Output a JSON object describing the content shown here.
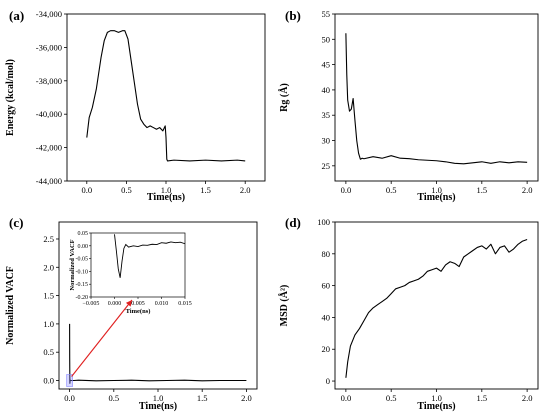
{
  "chart_data": [
    {
      "panel": "(a)",
      "type": "line",
      "xlabel": "Time(ns)",
      "ylabel": "Energy (kcal/mol)",
      "xlim": [
        -0.25,
        2.25
      ],
      "ylim": [
        -44000,
        -34000
      ],
      "xticks": [
        0.0,
        0.5,
        1.0,
        1.5,
        2.0
      ],
      "xtick_labels": [
        "0.0",
        "0.5",
        "1.0",
        "1.5",
        "2.0"
      ],
      "yticks": [
        -34000,
        -36000,
        -38000,
        -40000,
        -42000,
        -44000
      ],
      "ytick_labels": [
        "-34,000",
        "-36,000",
        "-38,000",
        "-40,000",
        "-42,000",
        "-44,000"
      ],
      "series": [
        {
          "color": "#000000",
          "x": [
            0.0,
            0.03,
            0.07,
            0.12,
            0.18,
            0.22,
            0.26,
            0.3,
            0.35,
            0.4,
            0.45,
            0.48,
            0.52,
            0.56,
            0.6,
            0.64,
            0.68,
            0.72,
            0.76,
            0.8,
            0.84,
            0.88,
            0.92,
            0.96,
            0.99,
            1.0,
            1.01,
            1.02,
            1.1,
            1.3,
            1.5,
            1.7,
            1.9,
            2.0
          ],
          "y": [
            -41400,
            -40200,
            -39600,
            -38500,
            -36600,
            -35600,
            -35100,
            -35000,
            -35000,
            -35100,
            -35000,
            -35000,
            -35500,
            -36800,
            -38100,
            -39400,
            -40300,
            -40600,
            -40800,
            -40700,
            -40800,
            -40900,
            -40800,
            -41000,
            -40700,
            -41400,
            -42700,
            -42800,
            -42750,
            -42800,
            -42750,
            -42800,
            -42750,
            -42800
          ]
        }
      ]
    },
    {
      "panel": "(b)",
      "type": "line",
      "xlabel": "Time(ns)",
      "ylabel": "Rg (Å)",
      "xlim": [
        -0.12,
        2.12
      ],
      "ylim": [
        22,
        55
      ],
      "xticks": [
        0.0,
        0.5,
        1.0,
        1.5,
        2.0
      ],
      "xtick_labels": [
        "0.0",
        "0.5",
        "1.0",
        "1.5",
        "2.0"
      ],
      "yticks": [
        25,
        30,
        35,
        40,
        45,
        50,
        55
      ],
      "ytick_labels": [
        "25",
        "30",
        "35",
        "40",
        "45",
        "50",
        "55"
      ],
      "series": [
        {
          "color": "#000000",
          "x": [
            0.0,
            0.005,
            0.01,
            0.02,
            0.04,
            0.06,
            0.08,
            0.1,
            0.12,
            0.14,
            0.16,
            0.18,
            0.2,
            0.3,
            0.4,
            0.5,
            0.6,
            0.7,
            0.8,
            0.9,
            1.0,
            1.1,
            1.2,
            1.3,
            1.4,
            1.5,
            1.6,
            1.7,
            1.8,
            1.9,
            2.0
          ],
          "y": [
            51.2,
            47,
            43,
            38,
            35.8,
            36.2,
            38.3,
            34,
            30,
            27.5,
            26.3,
            26.5,
            26.4,
            26.8,
            26.5,
            27.0,
            26.5,
            26.4,
            26.2,
            26.1,
            26.0,
            25.8,
            25.5,
            25.4,
            25.6,
            25.8,
            25.5,
            25.8,
            25.6,
            25.8,
            25.7
          ]
        }
      ]
    },
    {
      "panel": "(c)",
      "type": "line",
      "xlabel": "Time(ns)",
      "ylabel": "Normalized VACF",
      "xlim": [
        -0.12,
        2.12
      ],
      "ylim": [
        -0.15,
        2.8
      ],
      "xticks": [
        0.0,
        0.5,
        1.0,
        1.5,
        2.0
      ],
      "xtick_labels": [
        "0.0",
        "0.5",
        "1.0",
        "1.5",
        "2.0"
      ],
      "yticks": [
        0.0,
        0.5,
        1.0,
        1.5,
        2.0,
        2.5
      ],
      "ytick_labels": [
        "0.0",
        "0.5",
        "1.0",
        "1.5",
        "2.0",
        "2.5"
      ],
      "series": [
        {
          "color": "#000000",
          "x": [
            0.0,
            0.001,
            0.003,
            0.006,
            0.01,
            0.05,
            0.1,
            0.3,
            0.5,
            0.7,
            0.9,
            1.1,
            1.3,
            1.5,
            1.7,
            1.9,
            2.0
          ],
          "y": [
            1.0,
            0.4,
            -0.05,
            0.01,
            0.0,
            0.0,
            0.005,
            -0.005,
            0.0,
            0.005,
            -0.005,
            0.0,
            0.005,
            -0.005,
            0.0,
            0.0,
            0.0
          ]
        }
      ],
      "inset": {
        "ylabel": "Normalized VACF",
        "xlabel": "Time(ns)",
        "xlim": [
          -0.005,
          0.015
        ],
        "ylim": [
          -0.2,
          0.05
        ],
        "xticks": [
          -0.005,
          0.0,
          0.005,
          0.01,
          0.015
        ],
        "xtick_labels": [
          "−0.005",
          "0.000",
          "0.005",
          "0.010",
          "0.015"
        ],
        "yticks": [
          0.05,
          0.0,
          -0.05,
          -0.1,
          -0.15,
          -0.2
        ],
        "ytick_labels": [
          "0.05",
          "0.00",
          "-0.05",
          "-0.10",
          "-0.15",
          "-0.20"
        ],
        "series": [
          {
            "color": "#000000",
            "x": [
              0.0,
              0.0004,
              0.0008,
              0.0012,
              0.0016,
              0.002,
              0.0024,
              0.003,
              0.004,
              0.005,
              0.006,
              0.007,
              0.008,
              0.009,
              0.01,
              0.011,
              0.012,
              0.013,
              0.014,
              0.015
            ],
            "y": [
              0.045,
              -0.02,
              -0.09,
              -0.125,
              -0.06,
              -0.01,
              0.005,
              -0.005,
              0.0,
              -0.003,
              0.003,
              0.002,
              0.006,
              0.005,
              0.012,
              0.01,
              0.015,
              0.012,
              0.014,
              0.008
            ]
          }
        ],
        "arrow_color": "#e02020",
        "highlight_color": "#8888ff"
      }
    },
    {
      "panel": "(d)",
      "type": "line",
      "xlabel": "Time(ns)",
      "ylabel": "MSD (Å²)",
      "xlim": [
        -0.12,
        2.12
      ],
      "ylim": [
        -5,
        100
      ],
      "xticks": [
        0.0,
        0.5,
        1.0,
        1.5,
        2.0
      ],
      "xtick_labels": [
        "0.0",
        "0.5",
        "1.0",
        "1.5",
        "2.0"
      ],
      "yticks": [
        0,
        20,
        40,
        60,
        80,
        100
      ],
      "ytick_labels": [
        "0",
        "20",
        "40",
        "60",
        "80",
        "100"
      ],
      "series": [
        {
          "color": "#000000",
          "x": [
            0.0,
            0.02,
            0.05,
            0.1,
            0.15,
            0.2,
            0.25,
            0.3,
            0.35,
            0.4,
            0.45,
            0.5,
            0.55,
            0.6,
            0.65,
            0.7,
            0.75,
            0.8,
            0.85,
            0.9,
            0.95,
            1.0,
            1.05,
            1.1,
            1.15,
            1.2,
            1.25,
            1.3,
            1.35,
            1.4,
            1.45,
            1.5,
            1.55,
            1.6,
            1.65,
            1.7,
            1.75,
            1.8,
            1.85,
            1.9,
            1.95,
            2.0
          ],
          "y": [
            2,
            12,
            22,
            29,
            33,
            38,
            43,
            46,
            48,
            50,
            52,
            55,
            58,
            59,
            60,
            62,
            63,
            64,
            66,
            69,
            70,
            71,
            69,
            73,
            75,
            74,
            72,
            78,
            80,
            82,
            84,
            85,
            83,
            86,
            80,
            84,
            85,
            81,
            83,
            86,
            88,
            89
          ]
        }
      ]
    }
  ]
}
